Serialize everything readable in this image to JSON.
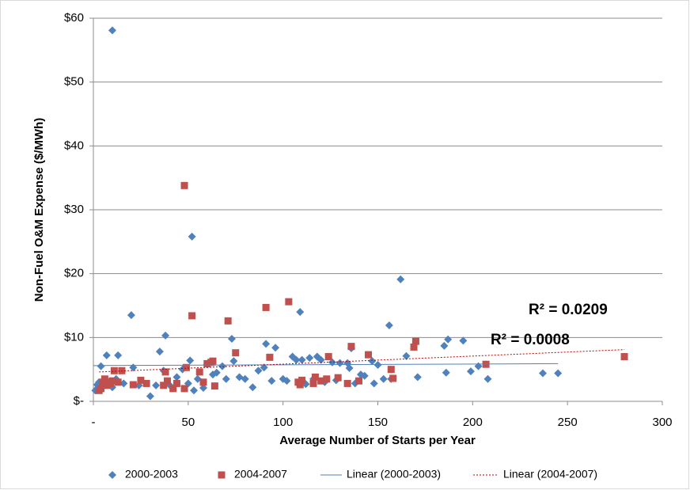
{
  "chart_data": {
    "type": "scatter",
    "x_label": "Average Number of Starts per Year",
    "y_label": "Non-Fuel O&M Expense ($/MWh)",
    "xlim": [
      0,
      300
    ],
    "ylim": [
      0,
      60
    ],
    "xticks": [
      {
        "value": 0,
        "label": "-"
      },
      50,
      100,
      150,
      200,
      250,
      300
    ],
    "yticks": [
      {
        "value": 0,
        "label": "$-"
      },
      {
        "value": 10,
        "label": "$10"
      },
      {
        "value": 20,
        "label": "$20"
      },
      {
        "value": 30,
        "label": "$30"
      },
      {
        "value": 40,
        "label": "$40"
      },
      {
        "value": 50,
        "label": "$50"
      },
      {
        "value": 60,
        "label": "$60"
      }
    ],
    "grid": true,
    "legend": "bottom",
    "series": [
      {
        "name": "2000-2003",
        "color": "#4f81bd",
        "marker": "diamond",
        "x": [
          10,
          52,
          162,
          20,
          109,
          156,
          38,
          73,
          91,
          96,
          187,
          195,
          185,
          35,
          7,
          13,
          51,
          165,
          136,
          147,
          150,
          134,
          130,
          126,
          122,
          116,
          107,
          105,
          110,
          114,
          118,
          120,
          100,
          102,
          90,
          87,
          84,
          80,
          77,
          74,
          70,
          68,
          65,
          63,
          60,
          58,
          55,
          53,
          50,
          47,
          44,
          40,
          37,
          33,
          30,
          24,
          21,
          16,
          12,
          10,
          8,
          5,
          4,
          3,
          2,
          1,
          2,
          171,
          186,
          199,
          203,
          208,
          237,
          245,
          157,
          143,
          138,
          148,
          153,
          94,
          128,
          112,
          141,
          135
        ],
        "values": [
          58.1,
          25.8,
          19.1,
          13.5,
          14,
          11.9,
          10.3,
          9.8,
          9,
          8.4,
          9.7,
          9.5,
          8.7,
          7.8,
          7.2,
          7.2,
          6.4,
          7.1,
          8.3,
          6.3,
          5.7,
          6,
          6,
          6.1,
          3,
          3.5,
          6.5,
          7,
          6.5,
          6.8,
          7,
          6.5,
          3.5,
          3.2,
          5.3,
          4.8,
          2.2,
          3.5,
          3.8,
          6.3,
          3.5,
          5.5,
          4.5,
          4.2,
          5.8,
          2.1,
          3.5,
          1.7,
          2.8,
          5,
          3.8,
          2.6,
          4.8,
          2.5,
          0.8,
          2.5,
          5.3,
          2.8,
          3.5,
          2.2,
          3,
          2.3,
          5.5,
          3,
          2.6,
          1.7,
          2,
          3.8,
          4.5,
          4.7,
          5.5,
          3.5,
          4.4,
          4.4,
          3.5,
          4,
          2.8,
          2.8,
          3.5,
          3.2,
          3.3,
          2.7,
          4.2,
          5.2
        ]
      },
      {
        "name": "2004-2007",
        "color": "#c0504d",
        "marker": "square",
        "x": [
          48,
          52,
          103,
          91,
          71,
          75,
          93,
          136,
          145,
          169,
          170,
          207,
          280,
          158,
          157,
          124,
          120,
          116,
          117,
          109,
          108,
          110,
          123,
          129,
          134,
          140,
          62,
          63,
          60,
          56,
          64,
          58,
          49,
          48,
          42,
          44,
          39,
          38,
          37,
          28,
          25,
          21,
          15,
          11,
          10,
          9,
          6,
          5,
          4,
          3,
          7,
          13
        ],
        "values": [
          33.8,
          13.4,
          15.6,
          14.7,
          12.6,
          7.6,
          6.9,
          8.6,
          7.3,
          8.5,
          9.4,
          5.8,
          7,
          3.6,
          5,
          7,
          3.2,
          2.8,
          3.8,
          2.6,
          3,
          3.3,
          3.5,
          3.7,
          2.8,
          3.2,
          6.1,
          6.3,
          5.9,
          4.6,
          2.4,
          3,
          5.3,
          2,
          2,
          2.8,
          3.2,
          4.6,
          2.5,
          2.8,
          3.3,
          2.6,
          4.8,
          4.8,
          3.2,
          2.8,
          3.5,
          3,
          2,
          1.7,
          2.5,
          3
        ]
      }
    ],
    "trendlines": [
      {
        "name": "Linear (2000-2003)",
        "color": "#4f81bd",
        "dashed": false,
        "x": [
          0,
          245
        ],
        "values": [
          5.6,
          5.9
        ]
      },
      {
        "name": "Linear (2004-2007)",
        "color": "#c00000",
        "dashed": true,
        "x": [
          3,
          280
        ],
        "values": [
          4.6,
          8.1
        ]
      }
    ],
    "annotations": [
      {
        "text": "R² = 0.0209",
        "color": "#c00000"
      },
      {
        "text": "R² = 0.0008",
        "color": "#1f497d"
      }
    ]
  }
}
